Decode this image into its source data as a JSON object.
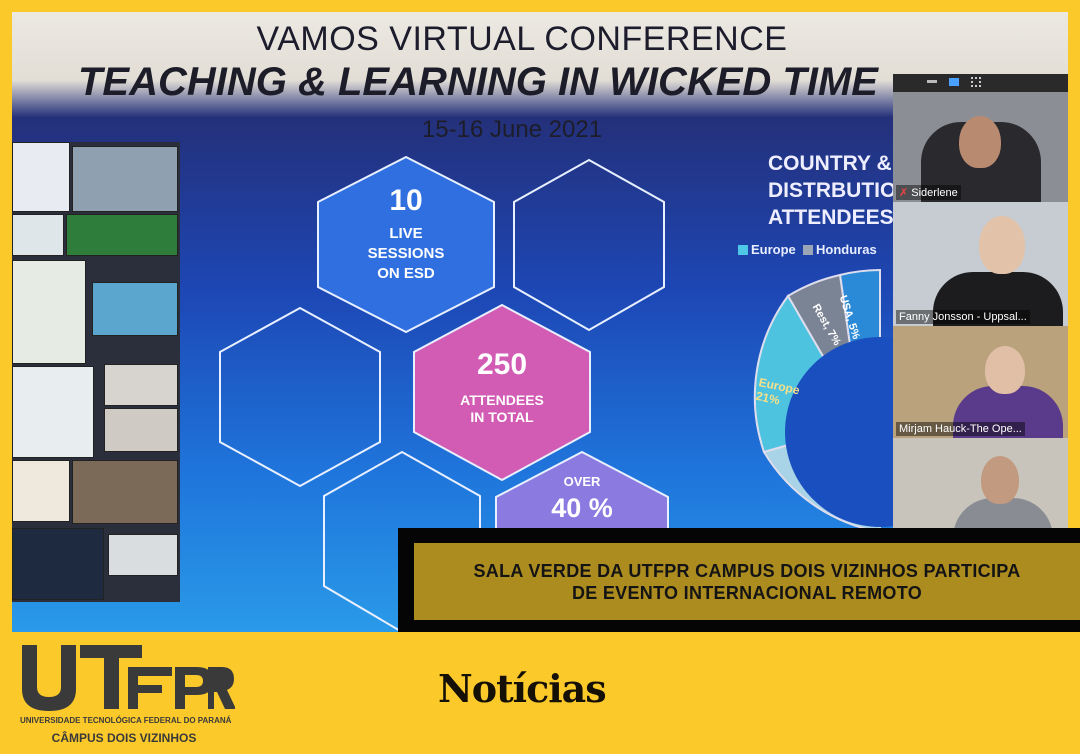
{
  "slide": {
    "title_line1": "VAMOS VIRTUAL CONFERENCE",
    "title_line2": "TEACHING & LEARNING IN WICKED TIME",
    "dates": "15-16 June 2021",
    "hexagons": [
      {
        "value": "10",
        "label_lines": [
          "LIVE",
          "SESSIONS",
          "ON ESD"
        ],
        "color": "#2f6fe0"
      },
      {
        "value": "250",
        "label_lines": [
          "ATTENDEES",
          "IN TOTAL"
        ],
        "color": "#d25bb4"
      },
      {
        "value": "40 %",
        "prefix": "OVER",
        "color": "#8b7be0"
      }
    ],
    "chart_title_lines": [
      "COUNTRY &",
      "DISTRBUTIO",
      "ATTENDEES"
    ],
    "legend": [
      {
        "label": "Europe",
        "color": "#4fc8e8"
      },
      {
        "label": "Honduras",
        "color": "#9aa6b8"
      }
    ],
    "donut_labels": [
      {
        "label": "USA, 5%",
        "color": "#2b8ad8"
      },
      {
        "label": "Rest, 7%",
        "color": "#7a8494"
      },
      {
        "label": "Europe 21%",
        "color": "#4ec3e0"
      }
    ]
  },
  "zoom": {
    "participants": [
      {
        "name": "Siderlene"
      },
      {
        "name": "Fanny Jonsson - Uppsal..."
      },
      {
        "name": "Mirjam Hauck-The Ope..."
      },
      {
        "name": ""
      }
    ]
  },
  "banner": {
    "line1": "SALA VERDE DA UTFPR CAMPUS DOIS VIZINHOS PARTICIPA",
    "line2": "DE EVENTO INTERNACIONAL REMOTO"
  },
  "footer": {
    "logo_text": "UTFPR",
    "university": "UNIVERSIDADE TECNOLÓGICA FEDERAL DO PARANÁ",
    "campus": "CÂMPUS DOIS VIZINHOS",
    "section": "Notícias"
  },
  "colors": {
    "frame": "#fbc92a",
    "banner_gold": "#ad8c1f",
    "banner_border": "#050505",
    "logo": "#3a3a3a"
  }
}
